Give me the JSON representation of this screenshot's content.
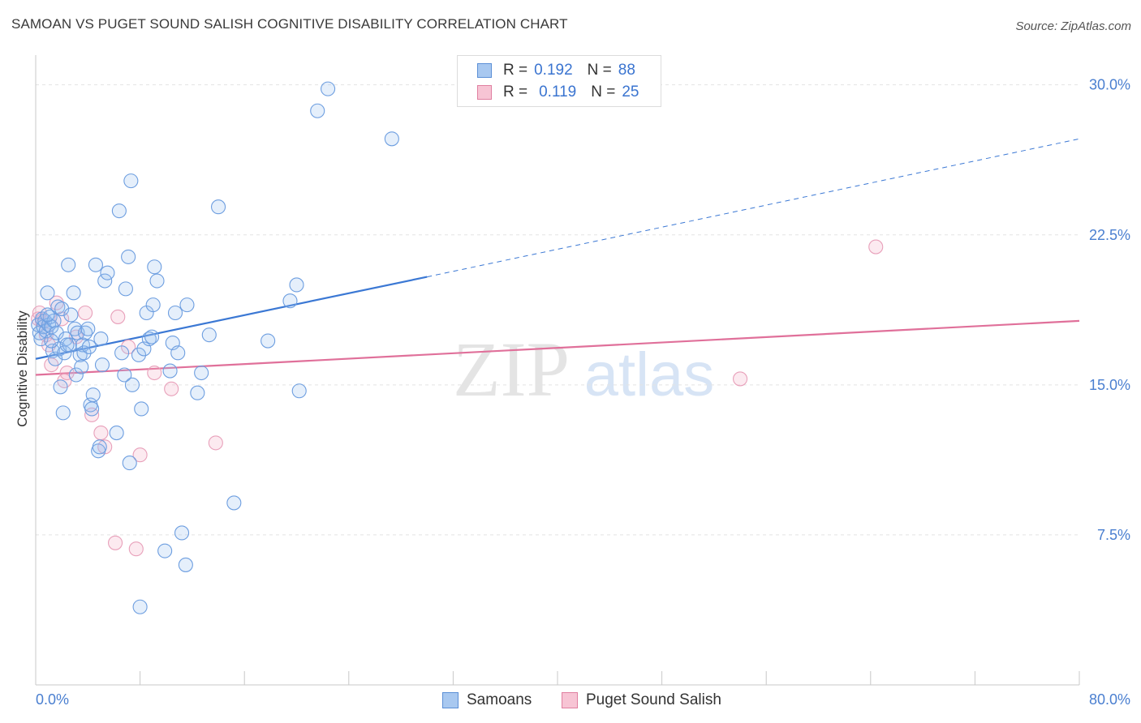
{
  "title": "SAMOAN VS PUGET SOUND SALISH COGNITIVE DISABILITY CORRELATION CHART",
  "source": "Source: ZipAtlas.com",
  "watermark": {
    "zip": "ZIP",
    "atlas": "atlas"
  },
  "legend": {
    "r_label": "R =",
    "n_label": "N =",
    "rows": [
      {
        "r": "0.192",
        "n": "88",
        "color": "#a8c8f0",
        "border": "#5b8fd6"
      },
      {
        "r": "0.119",
        "n": "25",
        "color": "#f7c4d4",
        "border": "#e07fa0"
      }
    ]
  },
  "bottom_legend": [
    {
      "label": "Samoans",
      "color": "#a8c8f0",
      "border": "#5b8fd6"
    },
    {
      "label": "Puget Sound Salish",
      "color": "#f7c4d4",
      "border": "#e07fa0"
    }
  ],
  "chart_data": {
    "type": "scatter",
    "title": "SAMOAN VS PUGET SOUND SALISH COGNITIVE DISABILITY CORRELATION CHART",
    "xlabel": "",
    "ylabel": "Cognitive Disability",
    "xlim": [
      0,
      80
    ],
    "ylim": [
      0,
      31
    ],
    "x_tick_labels": [
      "0.0%",
      "80.0%"
    ],
    "y_ticks": [
      7.5,
      15.0,
      22.5,
      30.0
    ],
    "y_tick_labels": [
      "7.5%",
      "15.0%",
      "22.5%",
      "30.0%"
    ],
    "grid": true,
    "colors": {
      "samoans": "#3b78d4",
      "salish": "#e0709a"
    },
    "series": [
      {
        "name": "Samoans",
        "trend": {
          "x0": 0,
          "y0": 16.3,
          "x1": 30,
          "y1": 20.4,
          "dashed_to_x": 80,
          "dashed_to_y": 27.3
        },
        "points": [
          [
            0.2,
            18.0
          ],
          [
            0.3,
            17.6
          ],
          [
            0.4,
            17.3
          ],
          [
            0.5,
            18.3
          ],
          [
            0.6,
            17.9
          ],
          [
            0.7,
            18.2
          ],
          [
            0.8,
            17.7
          ],
          [
            0.9,
            19.6
          ],
          [
            1.0,
            18.0
          ],
          [
            1.1,
            18.4
          ],
          [
            1.2,
            17.9
          ],
          [
            1.3,
            16.7
          ],
          [
            1.4,
            18.2
          ],
          [
            1.5,
            16.3
          ],
          [
            1.6,
            17.6
          ],
          [
            1.7,
            18.9
          ],
          [
            1.8,
            16.8
          ],
          [
            1.9,
            14.9
          ],
          [
            2.0,
            18.8
          ],
          [
            2.1,
            13.6
          ],
          [
            2.2,
            16.6
          ],
          [
            2.3,
            17.3
          ],
          [
            2.5,
            21.0
          ],
          [
            2.6,
            17.0
          ],
          [
            2.7,
            18.5
          ],
          [
            2.9,
            19.6
          ],
          [
            3.0,
            17.8
          ],
          [
            3.1,
            15.5
          ],
          [
            3.2,
            17.6
          ],
          [
            3.4,
            16.5
          ],
          [
            3.6,
            17.0
          ],
          [
            3.7,
            16.6
          ],
          [
            3.8,
            17.6
          ],
          [
            4.0,
            17.8
          ],
          [
            4.1,
            16.9
          ],
          [
            4.2,
            14.0
          ],
          [
            4.3,
            13.8
          ],
          [
            4.4,
            14.5
          ],
          [
            4.6,
            21.0
          ],
          [
            4.8,
            11.7
          ],
          [
            4.9,
            11.9
          ],
          [
            5.0,
            17.3
          ],
          [
            5.1,
            16.0
          ],
          [
            5.3,
            20.2
          ],
          [
            5.5,
            20.6
          ],
          [
            6.2,
            12.6
          ],
          [
            6.4,
            23.7
          ],
          [
            6.6,
            16.6
          ],
          [
            6.8,
            15.5
          ],
          [
            6.9,
            19.8
          ],
          [
            7.1,
            21.4
          ],
          [
            7.2,
            11.1
          ],
          [
            7.3,
            25.2
          ],
          [
            7.4,
            15.0
          ],
          [
            7.9,
            16.5
          ],
          [
            8.0,
            3.9
          ],
          [
            8.1,
            13.8
          ],
          [
            8.3,
            16.8
          ],
          [
            8.5,
            18.6
          ],
          [
            8.7,
            17.3
          ],
          [
            8.9,
            17.4
          ],
          [
            9.0,
            19.0
          ],
          [
            9.1,
            20.9
          ],
          [
            9.3,
            20.2
          ],
          [
            9.9,
            6.7
          ],
          [
            10.3,
            15.7
          ],
          [
            10.5,
            17.1
          ],
          [
            10.7,
            18.6
          ],
          [
            10.9,
            16.6
          ],
          [
            11.2,
            7.6
          ],
          [
            11.5,
            6.0
          ],
          [
            11.6,
            19.0
          ],
          [
            12.4,
            14.6
          ],
          [
            12.7,
            15.6
          ],
          [
            13.3,
            17.5
          ],
          [
            14.0,
            23.9
          ],
          [
            15.2,
            9.1
          ],
          [
            17.8,
            17.2
          ],
          [
            19.5,
            19.2
          ],
          [
            20.0,
            20.0
          ],
          [
            20.2,
            14.7
          ],
          [
            21.6,
            28.7
          ],
          [
            22.4,
            29.8
          ],
          [
            27.3,
            27.3
          ],
          [
            0.9,
            18.5
          ],
          [
            1.2,
            17.2
          ],
          [
            2.4,
            17.0
          ],
          [
            3.5,
            15.9
          ]
        ]
      },
      {
        "name": "Puget Sound Salish",
        "trend": {
          "x0": 0,
          "y0": 15.5,
          "x1": 80,
          "y1": 18.2
        },
        "points": [
          [
            0.2,
            18.3
          ],
          [
            0.5,
            18.2
          ],
          [
            0.8,
            17.5
          ],
          [
            1.0,
            17.0
          ],
          [
            1.2,
            16.0
          ],
          [
            1.6,
            19.1
          ],
          [
            2.0,
            18.3
          ],
          [
            2.2,
            15.2
          ],
          [
            2.4,
            15.6
          ],
          [
            3.1,
            17.4
          ],
          [
            3.8,
            18.6
          ],
          [
            4.3,
            13.5
          ],
          [
            5.0,
            12.6
          ],
          [
            5.3,
            11.9
          ],
          [
            6.1,
            7.1
          ],
          [
            6.3,
            18.4
          ],
          [
            7.1,
            16.9
          ],
          [
            7.7,
            6.8
          ],
          [
            8.0,
            11.5
          ],
          [
            9.1,
            15.6
          ],
          [
            10.4,
            14.8
          ],
          [
            13.8,
            12.1
          ],
          [
            0.3,
            18.6
          ],
          [
            54.0,
            15.3
          ],
          [
            64.4,
            21.9
          ]
        ]
      }
    ]
  }
}
